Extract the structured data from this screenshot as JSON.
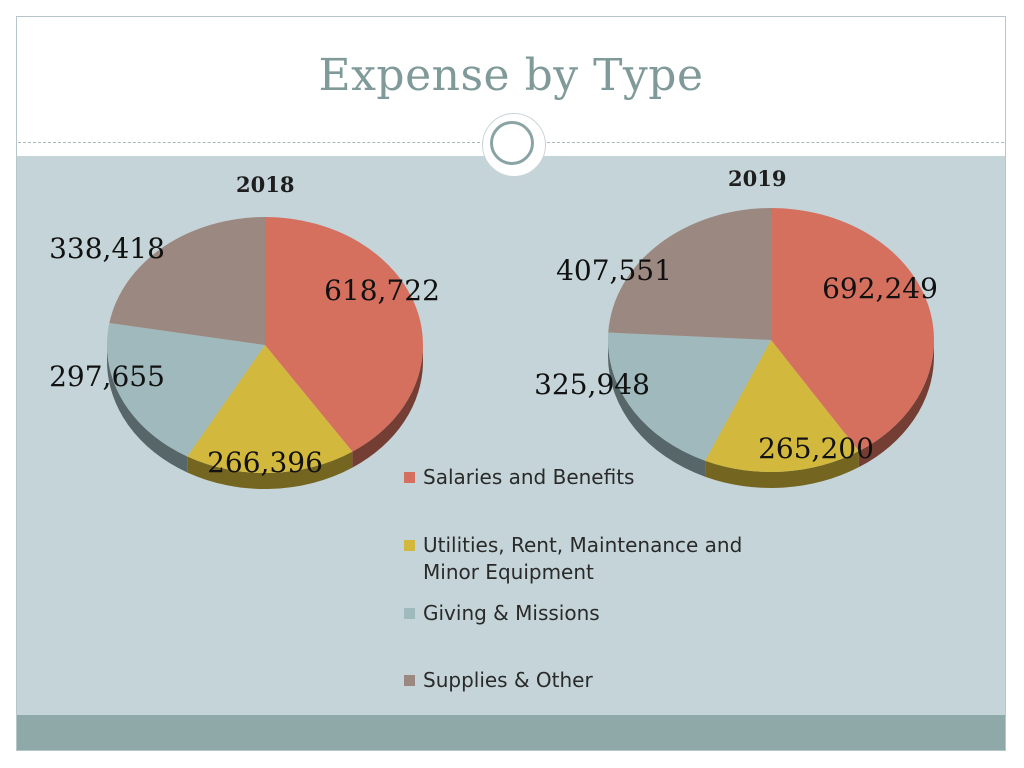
{
  "slide": {
    "title": "Expense by Type"
  },
  "colors": {
    "salaries": "#d5705f",
    "utilities": "#d2b83c",
    "giving": "#9fb9bd",
    "supplies": "#9b8880",
    "title": "#7f9a98",
    "background": "#c4d4d8",
    "footer": "#8fa9a9"
  },
  "chart_data": [
    {
      "type": "pie",
      "title": "2018",
      "categories": [
        "Salaries and Benefits",
        "Utilities, Rent, Maintenance and Minor Equipment",
        "Giving & Missions",
        "Supplies & Other"
      ],
      "values": [
        618722,
        266396,
        297655,
        338418
      ],
      "labels": [
        "618,722",
        "266,396",
        "297,655",
        "338,418"
      ]
    },
    {
      "type": "pie",
      "title": "2019",
      "categories": [
        "Salaries and Benefits",
        "Utilities, Rent, Maintenance and Minor Equipment",
        "Giving & Missions",
        "Supplies & Other"
      ],
      "values": [
        692249,
        265200,
        325948,
        407551
      ],
      "labels": [
        "692,249",
        "265,200",
        "325,948",
        "407,551"
      ]
    }
  ],
  "legend": {
    "items": [
      {
        "label": "Salaries and Benefits",
        "color": "#d5705f"
      },
      {
        "label": "Utilities, Rent, Maintenance and Minor Equipment",
        "color": "#d2b83c"
      },
      {
        "label": "Giving & Missions",
        "color": "#9fb9bd"
      },
      {
        "label": "Supplies & Other",
        "color": "#9b8880"
      }
    ]
  }
}
